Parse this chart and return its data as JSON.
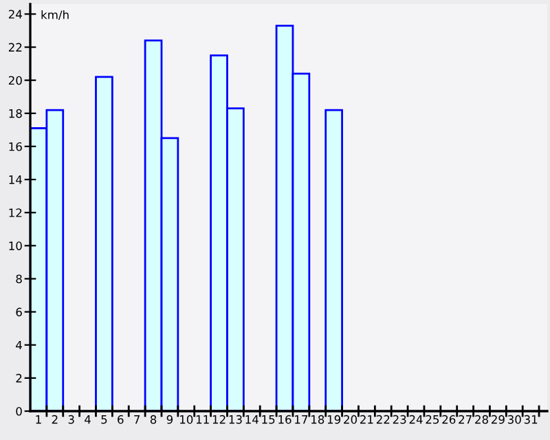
{
  "chart_data": {
    "type": "bar",
    "ylabel": "km/h",
    "categories": [
      "1",
      "2",
      "3",
      "4",
      "5",
      "6",
      "7",
      "8",
      "9",
      "10",
      "11",
      "12",
      "13",
      "14",
      "15",
      "16",
      "17",
      "18",
      "19",
      "20",
      "21",
      "22",
      "23",
      "24",
      "25",
      "26",
      "27",
      "28",
      "29",
      "30",
      "31"
    ],
    "values": [
      17.1,
      18.2,
      null,
      null,
      20.2,
      null,
      null,
      22.4,
      16.5,
      null,
      null,
      21.5,
      18.3,
      null,
      null,
      23.3,
      20.4,
      null,
      18.2,
      null,
      null,
      null,
      null,
      null,
      null,
      null,
      null,
      null,
      null,
      null,
      null
    ],
    "color": "#d8ffff",
    "ylim": [
      0,
      24.6
    ],
    "yticks": [
      0,
      2,
      4,
      6,
      8,
      10,
      12,
      14,
      16,
      18,
      20,
      22,
      24
    ],
    "grid": false
  }
}
